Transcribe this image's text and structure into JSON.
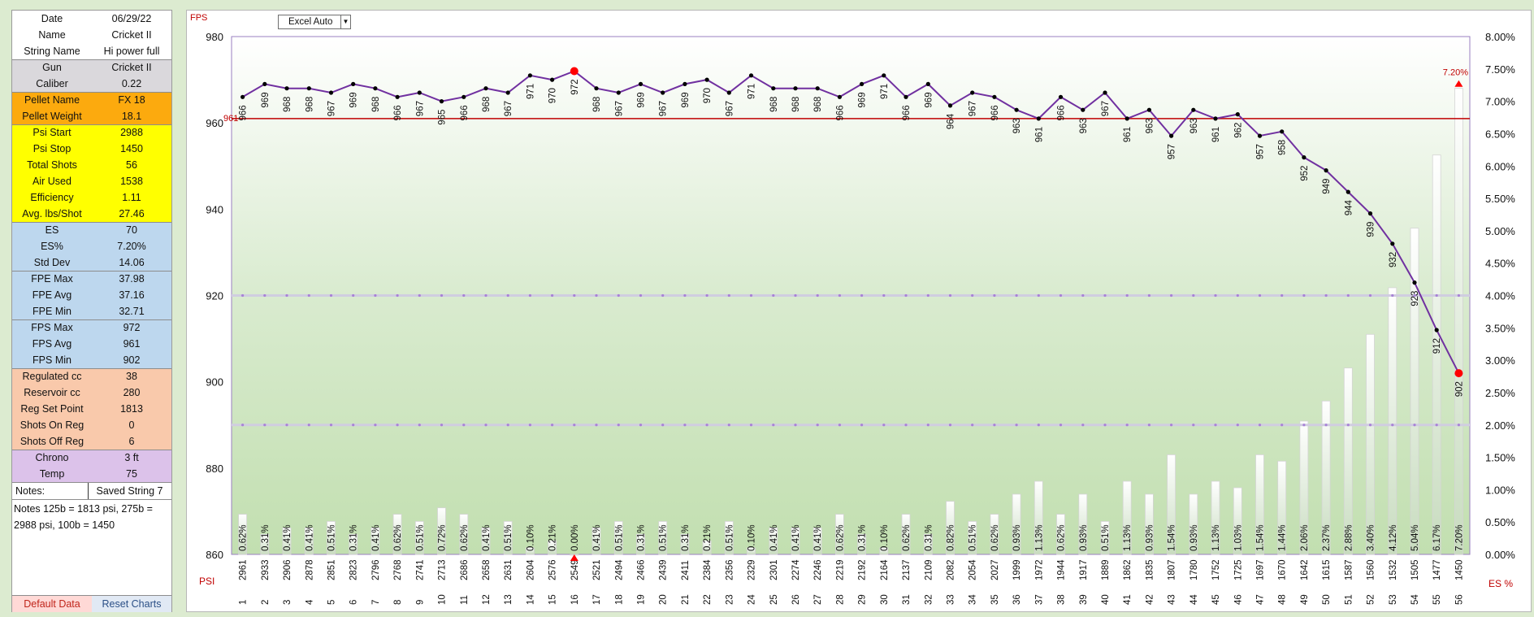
{
  "summary_panel": {
    "rows": [
      {
        "label": "Date",
        "value": "06/29/22",
        "bg": "#ffffff"
      },
      {
        "label": "Name",
        "value": "Cricket II",
        "bg": "#ffffff"
      },
      {
        "label": "String Name",
        "value": "Hi power full",
        "bg": "#ffffff"
      },
      {
        "label": "Gun",
        "value": "Cricket II",
        "bg": "#dad8dc"
      },
      {
        "label": "Caliber",
        "value": "0.22",
        "bg": "#dad8dc"
      },
      {
        "label": "Pellet Name",
        "value": "FX 18",
        "bg": "#fcaa0e"
      },
      {
        "label": "Pellet  Weight",
        "value": "18.1",
        "bg": "#fcaa0e"
      },
      {
        "label": "Psi Start",
        "value": "2988",
        "bg": "#ffff00"
      },
      {
        "label": "Psi Stop",
        "value": "1450",
        "bg": "#ffff00"
      },
      {
        "label": "Total Shots",
        "value": "56",
        "bg": "#ffff00"
      },
      {
        "label": "Air Used",
        "value": "1538",
        "bg": "#ffff00"
      },
      {
        "label": "Efficiency",
        "value": "1.11",
        "bg": "#ffff00"
      },
      {
        "label": "Avg. lbs/Shot",
        "value": "27.46",
        "bg": "#ffff00"
      },
      {
        "label": "ES",
        "value": "70",
        "bg": "#bdd7ee"
      },
      {
        "label": "ES%",
        "value": "7.20%",
        "bg": "#bdd7ee"
      },
      {
        "label": "Std Dev",
        "value": "14.06",
        "bg": "#bdd7ee"
      },
      {
        "label": "FPE Max",
        "value": "37.98",
        "bg": "#bdd7ee"
      },
      {
        "label": "FPE Avg",
        "value": "37.16",
        "bg": "#bdd7ee"
      },
      {
        "label": "FPE Min",
        "value": "32.71",
        "bg": "#bdd7ee"
      },
      {
        "label": "FPS Max",
        "value": "972",
        "bg": "#bdd7ee"
      },
      {
        "label": "FPS Avg",
        "value": "961",
        "bg": "#bdd7ee"
      },
      {
        "label": "FPS Min",
        "value": "902",
        "bg": "#bdd7ee"
      },
      {
        "label": "Regulated cc",
        "value": "38",
        "bg": "#f9c9ab"
      },
      {
        "label": "Reservoir cc",
        "value": "280",
        "bg": "#f9c9ab"
      },
      {
        "label": "Reg Set Point",
        "value": "1813",
        "bg": "#f9c9ab"
      },
      {
        "label": "Shots On Reg",
        "value": "0",
        "bg": "#f9c9ab"
      },
      {
        "label": "Shots Off Reg",
        "value": "6",
        "bg": "#f9c9ab"
      },
      {
        "label": "Chrono",
        "value": "3 ft",
        "bg": "#dcc2ea"
      },
      {
        "label": "Temp",
        "value": "75",
        "bg": "#dcc2ea"
      }
    ],
    "notes_label": "Notes:",
    "notes_saved": "Saved String 7",
    "notes_text": "Notes 125b = 1813 psi, 275b = 2988 psi, 100b = 1450",
    "default_button": "Default Data",
    "reset_button": "Reset Charts"
  },
  "chart_controls": {
    "select_value": "Excel Auto",
    "select_arrow_icon": "dropdown-arrow-icon"
  },
  "chart_data": {
    "type": "line",
    "y_axis_title": "FPS",
    "x_axis_title": "PSI",
    "y2_axis_title": "ES %",
    "ylim": [
      860,
      980
    ],
    "yticks": [
      860,
      880,
      900,
      920,
      940,
      960,
      980
    ],
    "y2lim": [
      0,
      8
    ],
    "y2ticks": [
      "0.00%",
      "0.50%",
      "1.00%",
      "1.50%",
      "2.00%",
      "2.50%",
      "3.00%",
      "3.50%",
      "4.00%",
      "4.50%",
      "5.00%",
      "5.50%",
      "6.00%",
      "6.50%",
      "7.00%",
      "7.50%",
      "8.00%"
    ],
    "shots": [
      1,
      2,
      3,
      4,
      5,
      6,
      7,
      8,
      9,
      10,
      11,
      12,
      13,
      14,
      15,
      16,
      17,
      18,
      19,
      20,
      21,
      22,
      23,
      24,
      25,
      26,
      27,
      28,
      29,
      30,
      31,
      32,
      33,
      34,
      35,
      36,
      37,
      38,
      39,
      40,
      41,
      42,
      43,
      44,
      45,
      46,
      47,
      48,
      49,
      50,
      51,
      52,
      53,
      54,
      55,
      56
    ],
    "psi": [
      2961,
      2933,
      2906,
      2878,
      2851,
      2823,
      2796,
      2768,
      2741,
      2713,
      2686,
      2658,
      2631,
      2604,
      2576,
      2549,
      2521,
      2494,
      2466,
      2439,
      2411,
      2384,
      2356,
      2329,
      2301,
      2274,
      2246,
      2219,
      2192,
      2164,
      2137,
      2109,
      2082,
      2054,
      2027,
      1999,
      1972,
      1944,
      1917,
      1889,
      1862,
      1835,
      1807,
      1780,
      1752,
      1725,
      1697,
      1670,
      1642,
      1615,
      1587,
      1560,
      1532,
      1505,
      1477,
      1450
    ],
    "series": [
      {
        "name": "FPS",
        "color": "#7030a0",
        "values": [
          966,
          969,
          968,
          968,
          967,
          969,
          968,
          966,
          967,
          965,
          966,
          968,
          967,
          971,
          970,
          972,
          968,
          967,
          969,
          967,
          969,
          970,
          967,
          971,
          968,
          968,
          968,
          966,
          969,
          971,
          966,
          969,
          964,
          967,
          966,
          963,
          961,
          966,
          963,
          967,
          961,
          963,
          957,
          963,
          961,
          962,
          957,
          958,
          952,
          949,
          944,
          939,
          932,
          923,
          912,
          902
        ]
      },
      {
        "name": "ES %",
        "color": "#c8dcbf",
        "values": [
          "0.62%",
          "0.31%",
          "0.41%",
          "0.41%",
          "0.51%",
          "0.31%",
          "0.41%",
          "0.62%",
          "0.51%",
          "0.72%",
          "0.62%",
          "0.41%",
          "0.51%",
          "0.10%",
          "0.21%",
          "0.00%",
          "0.41%",
          "0.51%",
          "0.31%",
          "0.51%",
          "0.31%",
          "0.21%",
          "0.51%",
          "0.10%",
          "0.41%",
          "0.41%",
          "0.41%",
          "0.62%",
          "0.31%",
          "0.10%",
          "0.62%",
          "0.31%",
          "0.82%",
          "0.51%",
          "0.62%",
          "0.93%",
          "1.13%",
          "0.62%",
          "0.93%",
          "0.51%",
          "1.13%",
          "0.93%",
          "1.54%",
          "0.93%",
          "1.13%",
          "1.03%",
          "1.54%",
          "1.44%",
          "2.06%",
          "2.37%",
          "2.88%",
          "3.40%",
          "4.12%",
          "5.04%",
          "6.17%",
          "7.20%"
        ]
      }
    ],
    "average_line": {
      "value": 961,
      "label": "961",
      "color": "#c00000"
    },
    "max_point": {
      "shot": 16,
      "value": 972,
      "color": "#ff0000"
    },
    "min_point": {
      "shot": 56,
      "value": 902,
      "color": "#ff0000"
    },
    "zero_marker_shot": 16,
    "es_max_marker": {
      "shot": 56,
      "label": "7.20%"
    },
    "dashed_lines_percent": [
      2,
      4
    ]
  }
}
